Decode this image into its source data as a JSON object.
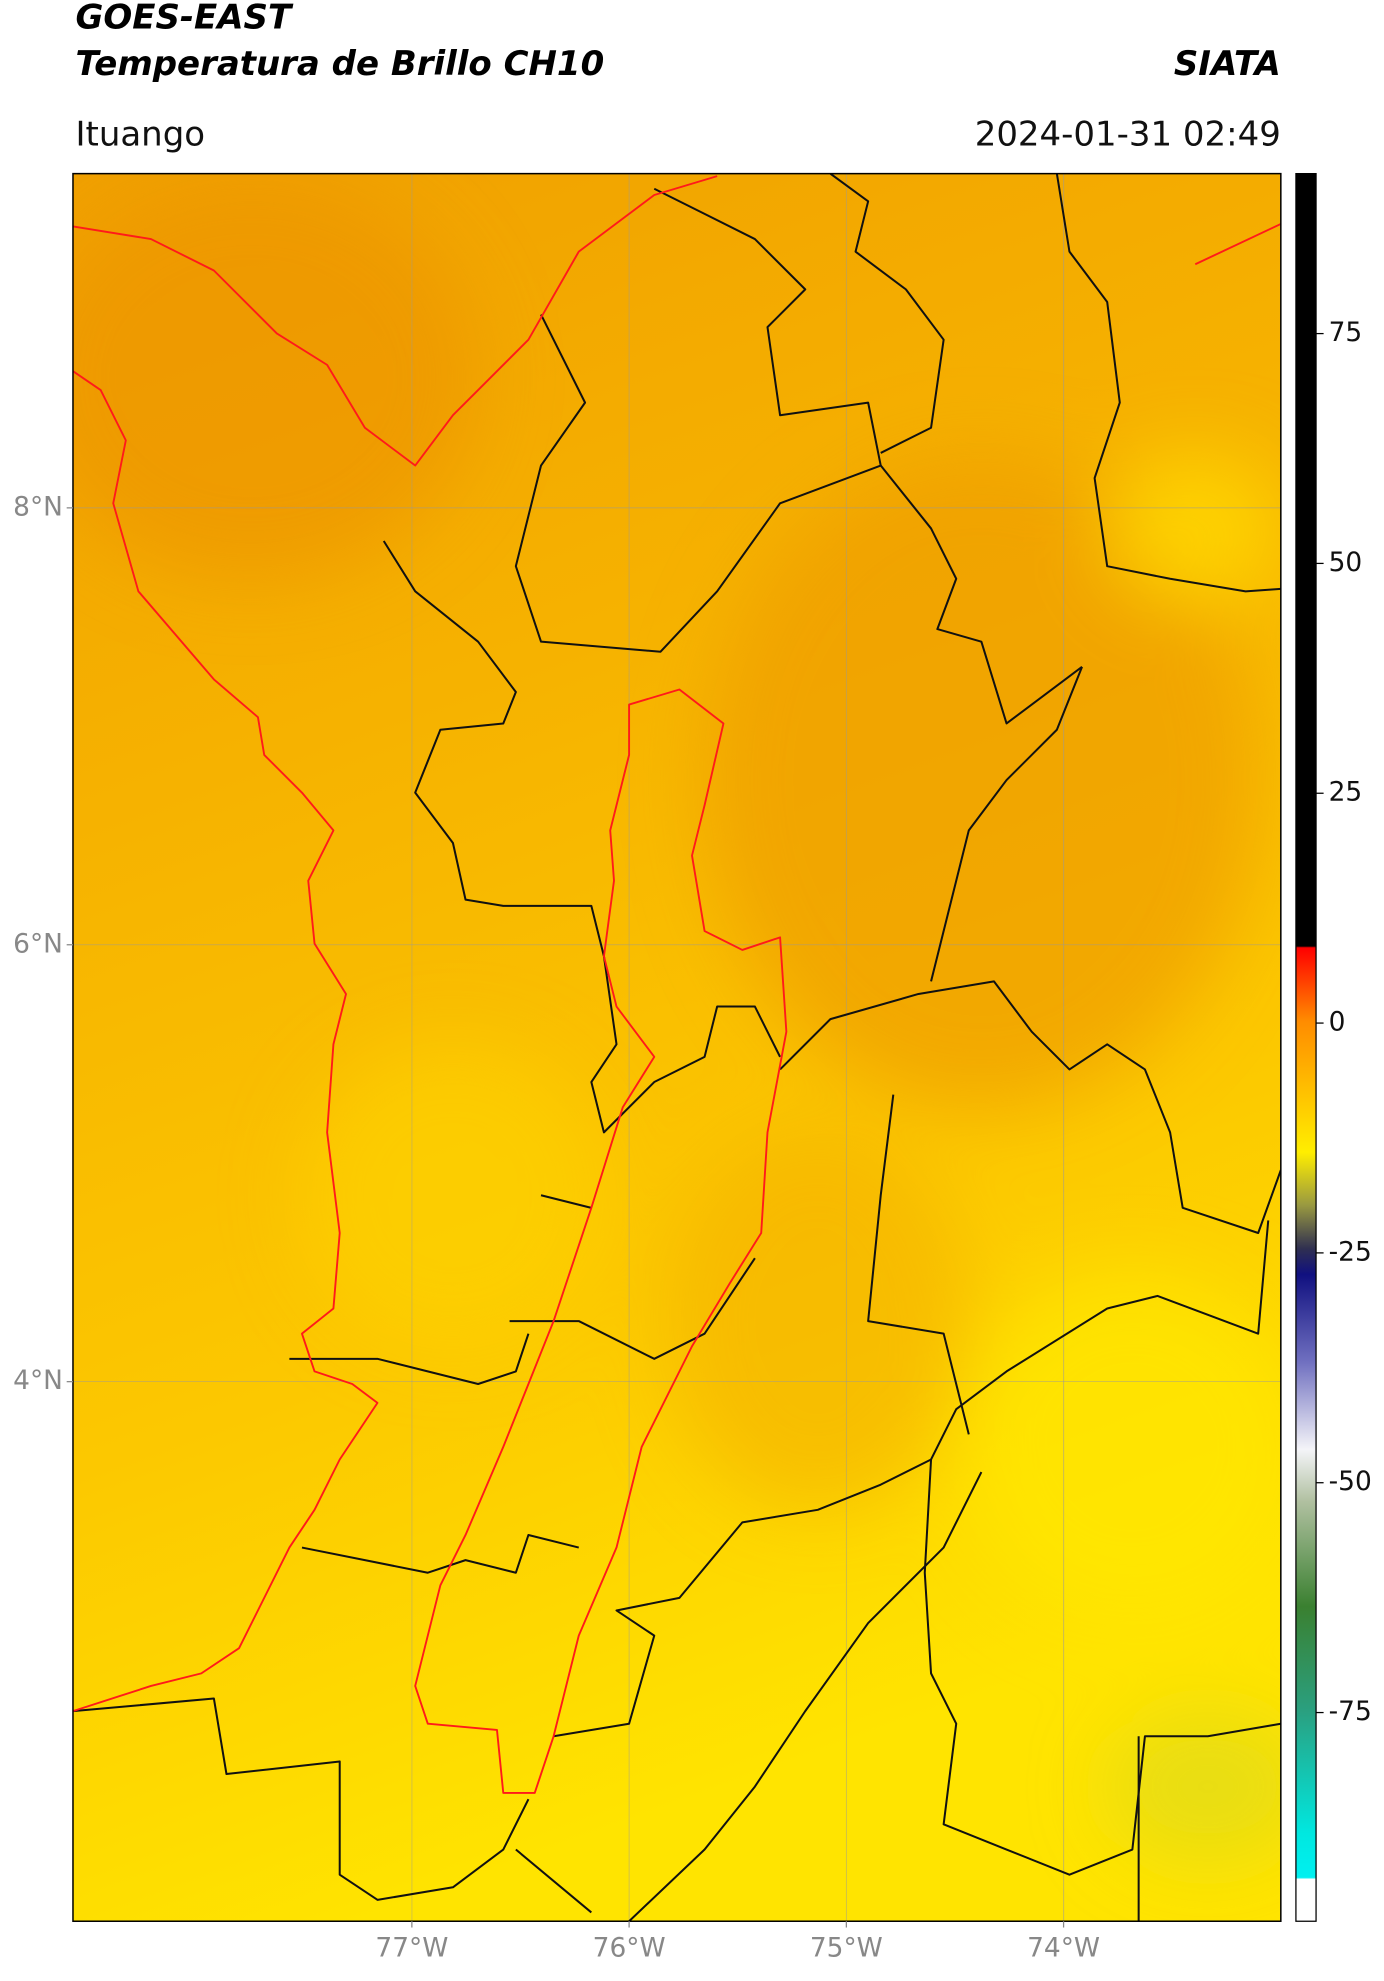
{
  "chart_data": {
    "type": "map",
    "title": "GOES-EAST",
    "subtitle": "Temperatura de Brillo CH10",
    "annotations": [
      "SIATA",
      "Ituango",
      "2024-01-31 02:49"
    ],
    "xlim": [
      -78.56,
      -73.0
    ],
    "ylim": [
      1.53,
      9.53
    ],
    "xticks": [
      {
        "value": -77,
        "label": "77°W"
      },
      {
        "value": -76,
        "label": "76°W"
      },
      {
        "value": -75,
        "label": "75°W"
      },
      {
        "value": -74,
        "label": "74°W"
      }
    ],
    "yticks": [
      {
        "value": 8,
        "label": "8°N"
      },
      {
        "value": 6,
        "label": "6°N"
      },
      {
        "value": 4,
        "label": "4°N"
      }
    ],
    "grid": true,
    "colorbar": {
      "lim": [
        -97.7,
        92.4
      ],
      "ticks": [
        75,
        50,
        25,
        0,
        -25,
        -50,
        -75
      ]
    }
  }
}
